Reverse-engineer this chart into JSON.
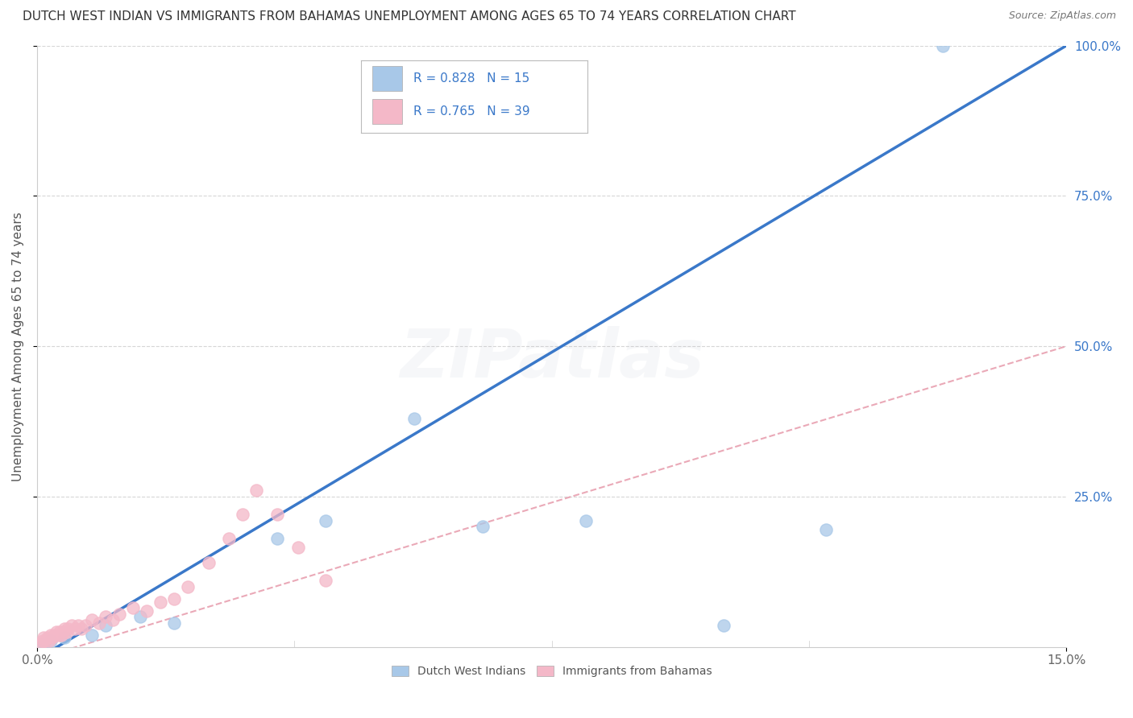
{
  "title": "DUTCH WEST INDIAN VS IMMIGRANTS FROM BAHAMAS UNEMPLOYMENT AMONG AGES 65 TO 74 YEARS CORRELATION CHART",
  "source": "Source: ZipAtlas.com",
  "ylabel": "Unemployment Among Ages 65 to 74 years",
  "xlim": [
    0.0,
    15.0
  ],
  "ylim": [
    0.0,
    100.0
  ],
  "x_ticks": [
    0.0,
    15.0
  ],
  "x_tick_labels": [
    "0.0%",
    "15.0%"
  ],
  "y_ticks": [
    25.0,
    50.0,
    75.0,
    100.0
  ],
  "y_tick_labels": [
    "25.0%",
    "50.0%",
    "75.0%",
    "100.0%"
  ],
  "legend_text_blue": "R = 0.828   N = 15",
  "legend_text_pink": "R = 0.765   N = 39",
  "legend_label_blue": "Dutch West Indians",
  "legend_label_pink": "Immigrants from Bahamas",
  "blue_scatter_color": "#a8c8e8",
  "pink_scatter_color": "#f4b8c8",
  "blue_line_color": "#3a78c9",
  "pink_line_color": "#e8a0b0",
  "legend_text_color": "#3a78c9",
  "ytick_color": "#3a78c9",
  "xtick_color": "#666666",
  "watermark": "ZIPatlas",
  "background_color": "#ffffff",
  "grid_color": "#cccccc",
  "blue_scatter_x": [
    0.1,
    0.2,
    0.4,
    0.8,
    1.0,
    1.5,
    2.0,
    3.5,
    4.2,
    5.5,
    6.5,
    8.0,
    10.0,
    11.5,
    13.2
  ],
  "blue_scatter_y": [
    0.5,
    1.0,
    1.5,
    2.0,
    3.5,
    5.0,
    4.0,
    18.0,
    21.0,
    38.0,
    20.0,
    21.0,
    3.5,
    19.5,
    100.0
  ],
  "pink_scatter_x": [
    0.05,
    0.08,
    0.1,
    0.12,
    0.15,
    0.18,
    0.2,
    0.22,
    0.25,
    0.28,
    0.3,
    0.33,
    0.35,
    0.38,
    0.4,
    0.43,
    0.45,
    0.5,
    0.55,
    0.6,
    0.65,
    0.7,
    0.8,
    0.9,
    1.0,
    1.1,
    1.2,
    1.4,
    1.6,
    1.8,
    2.0,
    2.2,
    2.5,
    2.8,
    3.0,
    3.2,
    3.5,
    3.8,
    4.2
  ],
  "pink_scatter_y": [
    0.5,
    1.0,
    1.5,
    1.0,
    1.5,
    1.0,
    2.0,
    1.5,
    2.0,
    2.5,
    2.0,
    2.5,
    2.0,
    2.5,
    3.0,
    2.5,
    3.0,
    3.5,
    3.0,
    3.5,
    3.0,
    3.5,
    4.5,
    4.0,
    5.0,
    4.5,
    5.5,
    6.5,
    6.0,
    7.5,
    8.0,
    10.0,
    14.0,
    18.0,
    22.0,
    26.0,
    22.0,
    16.5,
    11.0
  ],
  "title_fontsize": 11,
  "source_fontsize": 9,
  "axis_label_fontsize": 11,
  "tick_fontsize": 11,
  "legend_fontsize": 11,
  "watermark_fontsize": 60,
  "watermark_alpha": 0.1
}
